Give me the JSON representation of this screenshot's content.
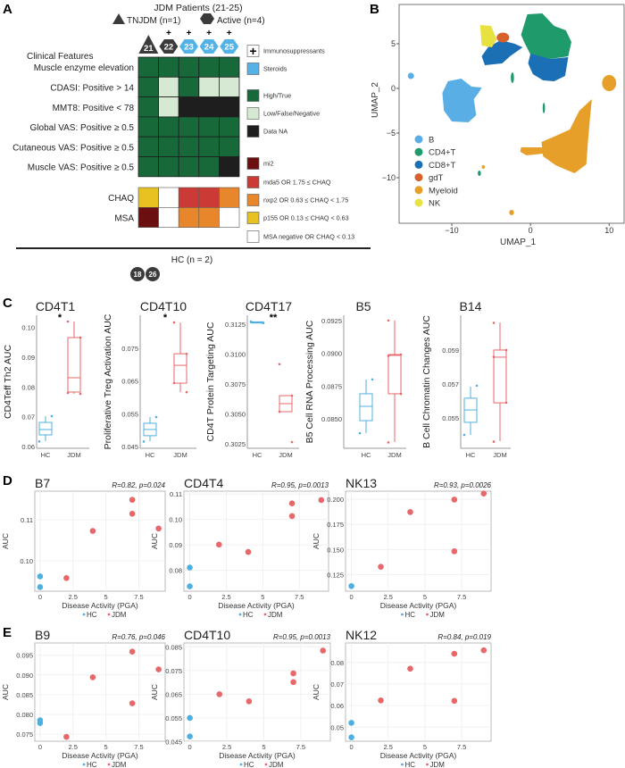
{
  "panel_labels": {
    "a": "A",
    "b": "B",
    "c": "C",
    "d": "D",
    "e": "E"
  },
  "panel_a": {
    "title": "JDM Patients (21-25)",
    "group_legend": [
      {
        "shape": "triangle",
        "label": "TNJDM (n=1)"
      },
      {
        "shape": "hexagon",
        "label": "Active (n=4)"
      }
    ],
    "patients": [
      {
        "id": "21",
        "shape": "triangle",
        "steroids": false,
        "immunosuppressants": false
      },
      {
        "id": "22",
        "shape": "hexagon",
        "steroids": false,
        "immunosuppressants": true
      },
      {
        "id": "23",
        "shape": "hexagon",
        "steroids": true,
        "immunosuppressants": true
      },
      {
        "id": "24",
        "shape": "hexagon",
        "steroids": true,
        "immunosuppressants": true
      },
      {
        "id": "25",
        "shape": "hexagon",
        "steroids": true,
        "immunosuppressants": true
      }
    ],
    "section_label": "Clinical Features",
    "rows": [
      {
        "label": "Muscle enzyme elevation",
        "values": [
          "high",
          "high",
          "high",
          "high",
          "high"
        ]
      },
      {
        "label": "CDASI: Positive > 14",
        "values": [
          "high",
          "low",
          "high",
          "low",
          "low"
        ]
      },
      {
        "label": "MMT8: Positive < 78",
        "values": [
          "high",
          "low",
          "na",
          "na",
          "na"
        ]
      },
      {
        "label": "Global VAS: Positive ≥ 0.5",
        "values": [
          "high",
          "high",
          "high",
          "high",
          "high"
        ]
      },
      {
        "label": "Cutaneous VAS: Positive ≥ 0.5",
        "values": [
          "high",
          "high",
          "high",
          "high",
          "high"
        ]
      },
      {
        "label": "Muscle VAS: Positive ≥ 0.5",
        "values": [
          "high",
          "high",
          "high",
          "high",
          "na"
        ]
      }
    ],
    "extra_rows": [
      {
        "label": "CHAQ",
        "values": [
          "p155",
          "none",
          "mda5",
          "mda5",
          "nxp2"
        ]
      },
      {
        "label": "MSA",
        "values": [
          "mi2",
          "none",
          "nxp2",
          "nxp2",
          "none"
        ]
      }
    ],
    "legend": [
      {
        "key": "immuno",
        "label": "Immunosuppressants",
        "icon": "plus-icon"
      },
      {
        "key": "steroids",
        "label": "Steroids"
      },
      {
        "key": "high",
        "label": "High/True"
      },
      {
        "key": "low",
        "label": "Low/False/Negative"
      },
      {
        "key": "na",
        "label": "Data NA"
      },
      {
        "key": "mi2",
        "label": "mi2"
      },
      {
        "key": "mda5",
        "label": "mda5 OR 1.75 ≤ CHAQ"
      },
      {
        "key": "nxp2",
        "label": "nxp2 OR  0.63 ≤ CHAQ < 1.75"
      },
      {
        "key": "p155",
        "label": "p155 OR 0.13 ≤ CHAQ < 0.63"
      },
      {
        "key": "none",
        "label": "MSA negative OR CHAQ < 0.13"
      }
    ],
    "colors": {
      "immuno": "#ffffff",
      "steroids": "#55b2e6",
      "high": "#17693a",
      "low": "#d6e9d2",
      "na": "#1e1e1e",
      "mi2": "#6b0f10",
      "mda5": "#cc3a36",
      "nxp2": "#e8862b",
      "p155": "#e7c11f",
      "none": "#ffffff",
      "patient_dark": "#3b3b3b"
    },
    "hc": {
      "label": "HC (n = 2)",
      "ids": [
        "18",
        "26"
      ]
    }
  },
  "chart_data": [
    {
      "panel": "B",
      "type": "scatter",
      "title": "",
      "xlabel": "UMAP_1",
      "ylabel": "UMAP_2",
      "xlim": [
        -16.7,
        11.9
      ],
      "ylim": [
        -15.1,
        9.4
      ],
      "xticks": [
        -10,
        0,
        10
      ],
      "yticks": [
        -10,
        -5,
        0,
        5
      ],
      "grid": false,
      "legend_position": "bottom-left",
      "categories": [
        {
          "name": "B",
          "color": "#5aaee6",
          "centroid": [
            -8.8,
            -1.3
          ]
        },
        {
          "name": "CD4+T",
          "color": "#1f9a6a",
          "centroid": [
            2.2,
            5.7
          ]
        },
        {
          "name": "CD8+T",
          "color": "#1a6fb5",
          "centroid": [
            2.2,
            2.3
          ]
        },
        {
          "name": "gdT",
          "color": "#d8602a",
          "centroid": [
            -3.5,
            5.6
          ]
        },
        {
          "name": "Myeloid",
          "color": "#e6a029",
          "centroid": [
            5.2,
            -6.5
          ]
        },
        {
          "name": "NK",
          "color": "#e8e241",
          "centroid": [
            -5.4,
            5.9
          ]
        }
      ]
    },
    {
      "panel": "C",
      "type": "box",
      "title": "CD4T1",
      "significance": "*",
      "ylabel": "CD4Teff Th2  AUC",
      "categories": [
        "HC",
        "JDM"
      ],
      "ylim": [
        0.0594,
        0.1041
      ],
      "yticks": [
        "0.06",
        "0.07",
        "0.08",
        "0.09",
        "0.10"
      ],
      "groups": [
        {
          "name": "HC",
          "q1": 0.0639,
          "median": 0.0657,
          "q3": 0.0681,
          "whisker_low": 0.0618,
          "whisker_high": 0.0702,
          "points": [
            0.0617,
            0.0702
          ]
        },
        {
          "name": "JDM",
          "q1": 0.0783,
          "median": 0.0831,
          "q3": 0.0966,
          "whisker_low": 0.0777,
          "whisker_high": 0.102,
          "points": [
            0.102,
            0.0966,
            0.078,
            0.0777
          ]
        }
      ]
    },
    {
      "panel": "C",
      "type": "box",
      "title": "CD4T10",
      "significance": "*",
      "ylabel": "Proliferative Treg Activation AUC",
      "categories": [
        "HC",
        "JDM"
      ],
      "ylim": [
        0.04445,
        0.0851
      ],
      "yticks": [
        "0.045",
        "0.055",
        "0.065",
        "0.075"
      ],
      "groups": [
        {
          "name": "HC",
          "q1": 0.0483,
          "median": 0.0502,
          "q3": 0.0521,
          "whisker_low": 0.0466,
          "whisker_high": 0.054,
          "points": [
            0.0465,
            0.054
          ]
        },
        {
          "name": "JDM",
          "q1": 0.06435,
          "median": 0.0698,
          "q3": 0.07334,
          "whisker_low": 0.0616,
          "whisker_high": 0.0829,
          "points": [
            0.0829,
            0.0733,
            0.0644,
            0.0616
          ]
        }
      ]
    },
    {
      "panel": "C",
      "type": "box",
      "title": "CD4T17",
      "significance": "**",
      "ylabel": "CD4T Protein Targeting AUC",
      "categories": [
        "HC",
        "JDM"
      ],
      "ylim": [
        0.30213,
        0.31325
      ],
      "yticks": [
        "0.3025",
        "0.3050",
        "0.3075",
        "0.3100",
        "0.3125"
      ],
      "groups": [
        {
          "name": "HC",
          "q1": 0.3126,
          "median": 0.31265,
          "q3": 0.3127,
          "whisker_low": 0.3126,
          "whisker_high": 0.3127,
          "points": [
            0.31272,
            0.3126
          ]
        },
        {
          "name": "JDM",
          "q1": 0.30519,
          "median": 0.30586,
          "q3": 0.30653,
          "whisker_low": 0.30519,
          "whisker_high": 0.30653,
          "points": [
            0.30916,
            0.30653,
            0.30519,
            0.30265
          ]
        }
      ]
    },
    {
      "panel": "C",
      "type": "box",
      "title": "B5",
      "significance": "",
      "ylabel": "B5 Cell RNA Processing  AUC",
      "categories": [
        "HC",
        "JDM"
      ],
      "ylim": [
        0.08275,
        0.0929
      ],
      "yticks": [
        "0.0850",
        "0.0875",
        "0.0900",
        "0.0925"
      ],
      "groups": [
        {
          "name": "HC",
          "q1": 0.08486,
          "median": 0.08595,
          "q3": 0.08691,
          "whisker_low": 0.08391,
          "whisker_high": 0.088,
          "points": [
            0.0839,
            0.088
          ]
        },
        {
          "name": "JDM",
          "q1": 0.08691,
          "median": 0.08984,
          "q3": 0.0899,
          "whisker_low": 0.08323,
          "whisker_high": 0.0925,
          "points": [
            0.0925,
            0.0899,
            0.0898,
            0.0869,
            0.0832
          ]
        }
      ]
    },
    {
      "panel": "C",
      "type": "box",
      "title": "B14",
      "significance": "",
      "ylabel": "B Cell Chromatin Changes AUC",
      "categories": [
        "HC",
        "JDM"
      ],
      "ylim": [
        0.05321,
        0.06105
      ],
      "yticks": [
        "0.055",
        "0.057",
        "0.059"
      ],
      "groups": [
        {
          "name": "HC",
          "q1": 0.05474,
          "median": 0.05547,
          "q3": 0.05616,
          "whisker_low": 0.054,
          "whisker_high": 0.05684,
          "points": [
            0.054,
            0.0569
          ]
        },
        {
          "name": "JDM",
          "q1": 0.05589,
          "median": 0.05858,
          "q3": 0.059,
          "whisker_low": 0.05363,
          "whisker_high": 0.06063,
          "points": [
            0.0606,
            0.059,
            0.0586,
            0.0559,
            0.0536
          ]
        }
      ]
    },
    {
      "panel": "D",
      "type": "scatter",
      "title": "B7",
      "stat": "R=0.82, p=0.024",
      "xlabel": "Disease Activity (PGA)",
      "ylabel": "AUC",
      "xlim": [
        -0.4,
        9.5
      ],
      "ylim": [
        0.0926,
        0.117
      ],
      "xticks": [
        "0",
        "2.5",
        "5",
        "7.5"
      ],
      "yticks": [
        "0.10",
        "0.11"
      ],
      "legend_position": "bottom",
      "series": [
        {
          "name": "HC",
          "color": "#4fb0e0",
          "x": [
            0,
            0
          ],
          "y": [
            0.0962,
            0.0936
          ]
        },
        {
          "name": "JDM",
          "color": "#e8676b",
          "x": [
            2,
            4,
            7,
            7,
            9
          ],
          "y": [
            0.0958,
            0.1073,
            0.1149,
            0.1115,
            0.1079
          ]
        }
      ]
    },
    {
      "panel": "D",
      "type": "scatter",
      "title": "CD4T4",
      "stat": "R=0.95, p=0.0013",
      "xlabel": "Disease Activity (PGA)",
      "ylabel": "AUC",
      "xlim": [
        -0.4,
        9.5
      ],
      "ylim": [
        0.0718,
        0.1111
      ],
      "xticks": [
        "0",
        "2.5",
        "5",
        "7.5"
      ],
      "yticks": [
        "0.08",
        "0.09",
        "0.10",
        "0.11"
      ],
      "legend_position": "bottom",
      "series": [
        {
          "name": "HC",
          "color": "#4fb0e0",
          "x": [
            0,
            0
          ],
          "y": [
            0.0811,
            0.0737
          ]
        },
        {
          "name": "JDM",
          "color": "#e8676b",
          "x": [
            2,
            4,
            7,
            7,
            9
          ],
          "y": [
            0.0901,
            0.0872,
            0.1063,
            0.1013,
            0.1076
          ]
        }
      ]
    },
    {
      "panel": "D",
      "type": "scatter",
      "title": "NK13",
      "stat": "R=0.93, p=0.0026",
      "xlabel": "Disease Activity (PGA)",
      "ylabel": "AUC",
      "xlim": [
        -0.4,
        9.5
      ],
      "ylim": [
        0.1085,
        0.2081
      ],
      "xticks": [
        "0",
        "2.5",
        "5",
        "7.5"
      ],
      "yticks": [
        "0.125",
        "0.150",
        "0.175",
        "0.200"
      ],
      "legend_position": "bottom",
      "series": [
        {
          "name": "HC",
          "color": "#4fb0e0",
          "x": [
            0
          ],
          "y": [
            0.1136
          ]
        },
        {
          "name": "JDM",
          "color": "#e8676b",
          "x": [
            2,
            4,
            7,
            7,
            9
          ],
          "y": [
            0.1328,
            0.1873,
            0.1997,
            0.1482,
            0.2057
          ]
        }
      ]
    },
    {
      "panel": "E",
      "type": "scatter",
      "title": "B9",
      "stat": "R=0.76, p=0.046",
      "xlabel": "Disease Activity (PGA)",
      "ylabel": "AUC",
      "xlim": [
        -0.4,
        9.5
      ],
      "ylim": [
        0.0732,
        0.0981
      ],
      "xticks": [
        "0",
        "2.5",
        "5",
        "7.5"
      ],
      "yticks": [
        "0.075",
        "0.080",
        "0.085",
        "0.090",
        "0.095"
      ],
      "legend_position": "bottom",
      "series": [
        {
          "name": "HC",
          "color": "#4fb0e0",
          "x": [
            0,
            0
          ],
          "y": [
            0.0785,
            0.0778
          ]
        },
        {
          "name": "JDM",
          "color": "#e8676b",
          "x": [
            2,
            4,
            7,
            7,
            9
          ],
          "y": [
            0.0743,
            0.0894,
            0.0959,
            0.0828,
            0.0914
          ]
        }
      ]
    },
    {
      "panel": "E",
      "type": "scatter",
      "title": "CD4T10",
      "stat": "R=0.95, p=0.0013",
      "xlabel": "Disease Activity (PGA)",
      "ylabel": "AUC",
      "xlim": [
        -0.4,
        9.5
      ],
      "ylim": [
        0.0452,
        0.0866
      ],
      "xticks": [
        "0",
        "2.5",
        "5",
        "7.5"
      ],
      "yticks": [
        "0.045",
        "0.055",
        "0.065",
        "0.075",
        "0.085"
      ],
      "legend_position": "bottom",
      "series": [
        {
          "name": "HC",
          "color": "#4fb0e0",
          "x": [
            0,
            0
          ],
          "y": [
            0.055,
            0.0472
          ]
        },
        {
          "name": "JDM",
          "color": "#e8676b",
          "x": [
            2,
            4,
            7,
            7,
            9
          ],
          "y": [
            0.065,
            0.062,
            0.0738,
            0.0701,
            0.0834
          ]
        }
      ]
    },
    {
      "panel": "E",
      "type": "scatter",
      "title": "NK12",
      "stat": "R=0.84, p=0.019",
      "xlabel": "Disease Activity (PGA)",
      "ylabel": "AUC",
      "xlim": [
        -0.4,
        9.5
      ],
      "ylim": [
        0.0435,
        0.089
      ],
      "xticks": [
        "0",
        "2.5",
        "5",
        "7.5"
      ],
      "yticks": [
        "0.05",
        "0.06",
        "0.07",
        "0.08"
      ],
      "legend_position": "bottom",
      "series": [
        {
          "name": "HC",
          "color": "#4fb0e0",
          "x": [
            0,
            0
          ],
          "y": [
            0.052,
            0.0453
          ]
        },
        {
          "name": "JDM",
          "color": "#e8676b",
          "x": [
            2,
            4,
            7,
            7,
            9
          ],
          "y": [
            0.0624,
            0.0771,
            0.084,
            0.0622,
            0.0856
          ]
        }
      ]
    }
  ]
}
